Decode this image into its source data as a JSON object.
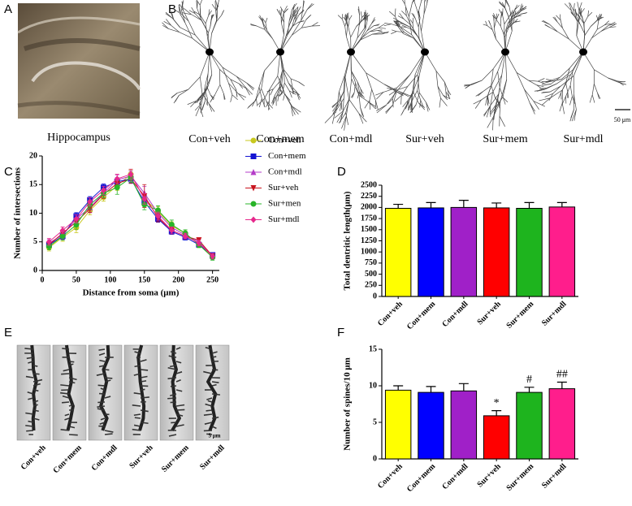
{
  "panel_labels": [
    "A",
    "B",
    "C",
    "D",
    "E",
    "F"
  ],
  "panel_a": {
    "caption": "Hippocampus"
  },
  "panel_b": {
    "labels": [
      "Con+veh",
      "Con+mem",
      "Con+mdl",
      "Sur+veh",
      "Sur+mem",
      "Sur+mdl"
    ],
    "scale_bar": "50 μm"
  },
  "panel_e": {
    "labels": [
      "Con+veh",
      "Con+mem",
      "Con+mdl",
      "Sur+veh",
      "Sur+mem",
      "Sur+mdl"
    ],
    "scale_bar": "5 μm"
  },
  "chart_data": [
    {
      "type": "line",
      "x_label": "Distance from soma (μm)",
      "y_label": "Number of intersections",
      "x": [
        10,
        30,
        50,
        70,
        90,
        110,
        130,
        150,
        170,
        190,
        210,
        230,
        250
      ],
      "xlim": [
        0,
        260
      ],
      "xticks": [
        0,
        50,
        100,
        150,
        200,
        250
      ],
      "ylim": [
        0,
        20
      ],
      "yticks": [
        0,
        5,
        10,
        15,
        20
      ],
      "series": [
        {
          "name": "Con+veh",
          "color": "#c8c81e",
          "marker": "circle",
          "values": [
            4.0,
            5.8,
            7.5,
            10.5,
            12.8,
            14.8,
            16.8,
            12.5,
            10.3,
            7.8,
            6.5,
            4.5,
            2.5
          ],
          "errors": [
            0.6,
            0.7,
            0.9,
            0.8,
            0.7,
            0.8,
            0.8,
            0.9,
            0.8,
            0.7,
            0.6,
            0.5,
            0.5
          ]
        },
        {
          "name": "Con+mem",
          "color": "#1414d2",
          "marker": "square",
          "values": [
            4.5,
            6.0,
            9.5,
            12.3,
            14.5,
            15.5,
            16.0,
            12.0,
            9.0,
            6.8,
            5.8,
            4.5,
            2.7
          ],
          "errors": [
            0.5,
            0.6,
            0.6,
            0.6,
            0.6,
            0.7,
            0.7,
            0.8,
            0.6,
            0.5,
            0.5,
            0.4,
            0.4
          ]
        },
        {
          "name": "Con+mdl",
          "color": "#b43cc8",
          "marker": "triangle-up",
          "values": [
            4.8,
            6.2,
            9.0,
            11.0,
            13.5,
            15.8,
            16.5,
            13.5,
            10.0,
            7.5,
            6.2,
            5.0,
            2.5
          ],
          "errors": [
            0.6,
            0.7,
            0.7,
            0.8,
            0.8,
            0.9,
            0.9,
            1.2,
            0.8,
            0.7,
            0.6,
            0.5,
            0.5
          ]
        },
        {
          "name": "Sur+veh",
          "color": "#c8141e",
          "marker": "triangle-down",
          "values": [
            4.5,
            6.5,
            8.5,
            10.8,
            13.3,
            15.2,
            16.0,
            13.0,
            9.2,
            7.0,
            6.0,
            5.3,
            2.5
          ],
          "errors": [
            0.5,
            0.6,
            0.7,
            0.7,
            0.7,
            0.8,
            0.8,
            2.0,
            0.7,
            0.6,
            0.5,
            0.4,
            0.4
          ]
        },
        {
          "name": "Sur+men",
          "color": "#28b428",
          "marker": "circle",
          "values": [
            4.2,
            6.0,
            8.0,
            11.5,
            13.5,
            14.5,
            16.2,
            11.5,
            10.5,
            8.0,
            6.5,
            4.5,
            2.3
          ],
          "errors": [
            0.6,
            0.7,
            0.8,
            0.8,
            0.8,
            1.2,
            0.8,
            0.9,
            0.8,
            0.8,
            0.6,
            0.5,
            0.5
          ]
        },
        {
          "name": "Sur+mdl",
          "color": "#e6288c",
          "marker": "diamond",
          "values": [
            5.0,
            7.0,
            9.0,
            12.0,
            14.0,
            16.0,
            16.8,
            12.5,
            9.5,
            7.0,
            6.0,
            4.8,
            2.5
          ],
          "errors": [
            0.6,
            0.6,
            0.7,
            0.7,
            0.7,
            0.8,
            0.9,
            0.9,
            0.7,
            0.6,
            0.5,
            0.5,
            0.5
          ]
        }
      ]
    },
    {
      "type": "bar",
      "y_label": "Total dentritic length(μm)",
      "categories": [
        "Con+veh",
        "Con+mem",
        "Con+mdl",
        "Sur+veh",
        "Sur+mem",
        "Sur+mdl"
      ],
      "values": [
        1980,
        1990,
        2000,
        1990,
        1980,
        2010
      ],
      "errors": [
        90,
        120,
        160,
        110,
        130,
        100
      ],
      "colors": [
        "#ffff00",
        "#0000ff",
        "#a020c8",
        "#ff0000",
        "#1eb41e",
        "#ff1e8c"
      ],
      "ylim": [
        0,
        2500
      ],
      "yticks": [
        0,
        250,
        500,
        750,
        1000,
        1250,
        1500,
        1750,
        2000,
        2250,
        2500
      ]
    },
    {
      "type": "bar",
      "y_label": "Number of spines/10 μm",
      "categories": [
        "Con+veh",
        "Con+mem",
        "Con+mdl",
        "Sur+veh",
        "Sur+mem",
        "Sur+mdl"
      ],
      "values": [
        9.4,
        9.1,
        9.3,
        5.9,
        9.1,
        9.6
      ],
      "errors": [
        0.6,
        0.8,
        1.0,
        0.7,
        0.7,
        0.9
      ],
      "colors": [
        "#ffff00",
        "#0000ff",
        "#a020c8",
        "#ff0000",
        "#1eb41e",
        "#ff1e8c"
      ],
      "ylim": [
        0,
        15
      ],
      "yticks": [
        0,
        5,
        10,
        15
      ],
      "annotations": [
        {
          "category": "Sur+veh",
          "text": "*"
        },
        {
          "category": "Sur+mem",
          "text": "#"
        },
        {
          "category": "Sur+mdl",
          "text": "##"
        }
      ]
    }
  ]
}
